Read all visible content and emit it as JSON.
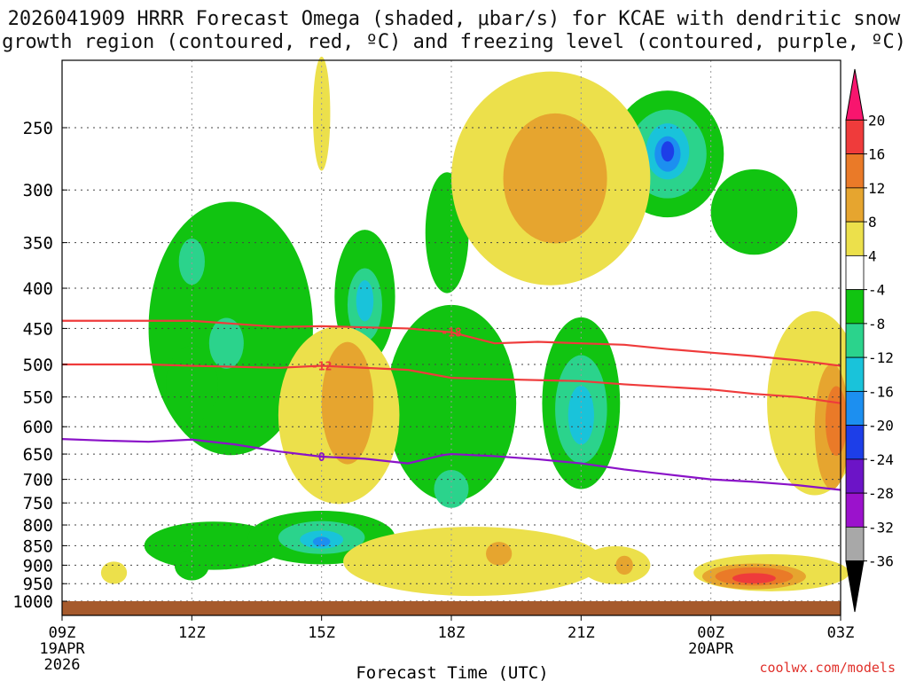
{
  "title_line1": "2026041909 HRRR Forecast Omega (shaded, μbar/s) for KCAE with dendritic snow",
  "title_line2": "growth region (contoured, red, ºC) and freezing level (contoured, purple, ºC)",
  "credit": "coolwx.com/models",
  "chart_data": {
    "type": "heatmap",
    "title": "2026041909 HRRR Forecast Omega (shaded, μbar/s) for KCAE with dendritic snow growth region (contoured, red, ºC) and freezing level (contoured, purple, ºC)",
    "xlabel": "Forecast Time (UTC)",
    "ylabel": "",
    "x_hours": [
      0,
      3,
      6,
      9,
      12,
      15,
      18
    ],
    "x_ticks": [
      {
        "hour": 0,
        "label": "09Z",
        "date": "19APR",
        "year": "2026"
      },
      {
        "hour": 3,
        "label": "12Z"
      },
      {
        "hour": 6,
        "label": "15Z"
      },
      {
        "hour": 9,
        "label": "18Z"
      },
      {
        "hour": 12,
        "label": "21Z"
      },
      {
        "hour": 15,
        "label": "00Z",
        "date": "20APR"
      },
      {
        "hour": 18,
        "label": "03Z"
      }
    ],
    "xlim": [
      0,
      18
    ],
    "y_pressure_levels_hPa": [
      250,
      300,
      350,
      400,
      450,
      500,
      550,
      600,
      650,
      700,
      750,
      800,
      850,
      900,
      950,
      1000
    ],
    "ylim": [
      1010,
      200
    ],
    "y_scale": "log-pressure",
    "grid": "dotted",
    "colorbar": {
      "labels": [
        "20",
        "16",
        "12",
        "8",
        "4",
        "-4",
        "-8",
        "-12",
        "-16",
        "-20",
        "-24",
        "-28",
        "-32",
        "-36"
      ],
      "colors": [
        "#f8156e",
        "#ef3b3b",
        "#ea7a28",
        "#e6a52f",
        "#ece04b",
        "#ffffff",
        "#11c411",
        "#2bd38c",
        "#19c3da",
        "#1c8ff0",
        "#1d3ee8",
        "#6c14c7",
        "#9b12cc",
        "#a8a8a8",
        "#000000"
      ]
    },
    "omega_features": [
      {
        "name": "upper green column 12Z",
        "hour": 3.4,
        "p": 420,
        "value": -6
      },
      {
        "name": "upper cyan core 13Z",
        "hour": 3.8,
        "p": 470,
        "value": -10
      },
      {
        "name": "blue cell 16Z",
        "hour": 7.0,
        "p": 415,
        "value": -14
      },
      {
        "name": "low-level blue core 15Z",
        "hour": 6.0,
        "p": 840,
        "value": -16
      },
      {
        "name": "green column 21Z",
        "hour": 12.0,
        "p": 600,
        "value": -10
      },
      {
        "name": "upper blue max 23Z",
        "hour": 14.0,
        "p": 270,
        "value": -22
      },
      {
        "name": "yellow-orange 15Z-16Z",
        "hour": 6.3,
        "p": 580,
        "value": 9
      },
      {
        "name": "upper yellow 20Z",
        "hour": 11.2,
        "p": 320,
        "value": 8
      },
      {
        "name": "red max 01Z",
        "hour": 16.0,
        "p": 930,
        "value": 18
      },
      {
        "name": "orange 03Z edge",
        "hour": 17.9,
        "p": 600,
        "value": 14
      }
    ],
    "series": [
      {
        "name": "-18",
        "kind": "dendritic growth (red)",
        "x": [
          0,
          3,
          5,
          6,
          8,
          9,
          10,
          11,
          12,
          13,
          14,
          15,
          16,
          17,
          18
        ],
        "y": [
          440,
          440,
          448,
          447,
          450,
          455,
          470,
          468,
          470,
          472,
          478,
          483,
          488,
          494,
          502
        ]
      },
      {
        "name": "-12",
        "kind": "dendritic growth (red)",
        "x": [
          0,
          2,
          3,
          5,
          6,
          8,
          9,
          10,
          12,
          13,
          15,
          16,
          17,
          18
        ],
        "y": [
          500,
          500,
          502,
          505,
          502,
          508,
          520,
          522,
          525,
          530,
          538,
          545,
          550,
          560
        ]
      },
      {
        "name": "0",
        "kind": "freezing level (purple)",
        "x": [
          0,
          1,
          2,
          3,
          4,
          5,
          6,
          7,
          8,
          8.8,
          9,
          10,
          11,
          12,
          13,
          14,
          15,
          16,
          17,
          18
        ],
        "y": [
          622,
          625,
          627,
          623,
          632,
          645,
          655,
          659,
          668,
          652,
          650,
          654,
          660,
          668,
          680,
          690,
          700,
          705,
          712,
          722
        ]
      }
    ]
  }
}
